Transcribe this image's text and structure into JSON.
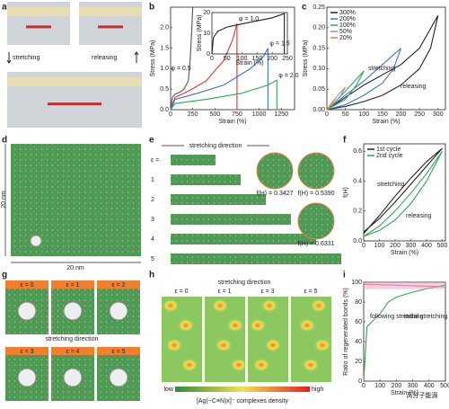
{
  "panel_labels": [
    "a",
    "b",
    "c",
    "d",
    "e",
    "f",
    "g",
    "h",
    "i"
  ],
  "panel_a": {
    "stretching": "stretching",
    "releasing": "releasing"
  },
  "chart_data": [
    {
      "type": "line",
      "xlabel": "Strain (%)",
      "ylabel": "Stress (MPa)",
      "xlim": [
        0,
        1400
      ],
      "ylim": [
        0,
        2.5
      ],
      "xticks": [
        0,
        250,
        500,
        750,
        1000,
        1250
      ],
      "yticks": [
        {
          "value": 0,
          "label": "0.0"
        },
        0.5,
        {
          "value": 1,
          "label": "1.0"
        },
        1.5,
        {
          "value": 2,
          "label": "2.0"
        }
      ],
      "series": [
        {
          "name": "φ = 0.5",
          "color": "#555555",
          "x": [
            0,
            20,
            50,
            100,
            150,
            200,
            220,
            240,
            250
          ],
          "values": [
            0,
            0.3,
            0.38,
            0.42,
            0.5,
            0.7,
            1.2,
            2.0,
            2.5
          ]
        },
        {
          "name": "φ = 1.0",
          "color": "#e8302b",
          "x": [
            0,
            50,
            200,
            400,
            600,
            700,
            750,
            750
          ],
          "values": [
            0,
            0.3,
            0.45,
            0.7,
            1.2,
            1.7,
            2.1,
            0
          ]
        },
        {
          "name": "φ = 1.5",
          "color": "#3a6fd0",
          "x": [
            0,
            50,
            300,
            600,
            900,
            1050,
            1100,
            1100
          ],
          "values": [
            0,
            0.25,
            0.4,
            0.6,
            1.0,
            1.3,
            1.5,
            0
          ]
        },
        {
          "name": "φ = 2.0",
          "color": "#2fa84f",
          "x": [
            0,
            50,
            400,
            800,
            1100,
            1200,
            1200
          ],
          "values": [
            0,
            0.15,
            0.25,
            0.4,
            0.6,
            0.72,
            0
          ]
        }
      ]
    },
    {
      "type": "line",
      "xlabel": "Strain (%)",
      "ylabel": "Stress (MPa)",
      "xlim": [
        0,
        250
      ],
      "ylim": [
        0,
        20
      ],
      "xticks": [
        0,
        50,
        100,
        150,
        200,
        250
      ],
      "yticks": [
        0,
        10,
        20
      ],
      "series": [
        {
          "color": "#222222",
          "x": [
            0,
            5,
            20,
            50,
            100,
            150,
            200,
            230,
            240,
            240
          ],
          "values": [
            0,
            8,
            11,
            13,
            14.5,
            16,
            17.5,
            19,
            19.5,
            0
          ]
        }
      ]
    },
    {
      "type": "line",
      "xlabel": "Strain (%)",
      "ylabel": "Stress (MPa)",
      "xlim": [
        0,
        320
      ],
      "ylim": [
        0,
        0.25
      ],
      "legend": "upper left",
      "xticks": [
        0,
        50,
        100,
        150,
        200,
        250,
        300
      ],
      "yticks": [
        {
          "value": 0,
          "label": "0.00"
        },
        0.05,
        {
          "value": 0.1,
          "label": "0.10"
        },
        0.15,
        {
          "value": 0.2,
          "label": "0.20"
        },
        0.25
      ],
      "annotations": [
        "stretching",
        "releasing"
      ],
      "series": [
        {
          "name": "300%",
          "color": "#222222",
          "x": [
            0,
            50,
            100,
            150,
            200,
            250,
            300,
            280,
            250,
            200,
            150,
            100,
            50,
            0
          ],
          "values": [
            0,
            0.03,
            0.06,
            0.085,
            0.11,
            0.15,
            0.23,
            0.15,
            0.1,
            0.06,
            0.035,
            0.02,
            0.008,
            0
          ]
        },
        {
          "name": "200%",
          "color": "#3a6fd0",
          "x": [
            0,
            50,
            100,
            150,
            200,
            180,
            150,
            100,
            50,
            0
          ],
          "values": [
            0,
            0.035,
            0.07,
            0.11,
            0.15,
            0.1,
            0.065,
            0.035,
            0.012,
            0
          ]
        },
        {
          "name": "100%",
          "color": "#2fa84f",
          "x": [
            0,
            50,
            100,
            80,
            50,
            0
          ],
          "values": [
            0,
            0.045,
            0.095,
            0.06,
            0.025,
            0
          ]
        },
        {
          "name": "50%",
          "color": "#999999",
          "x": [
            0,
            25,
            50,
            35,
            0
          ],
          "values": [
            0,
            0.03,
            0.055,
            0.03,
            0
          ]
        },
        {
          "name": "20%",
          "color": "#f08030",
          "x": [
            0,
            20,
            10,
            0
          ],
          "values": [
            0,
            0.025,
            0.01,
            0
          ]
        }
      ]
    },
    {
      "type": "line",
      "xlabel": "Strain (%)",
      "ylabel": "f(H)",
      "xlim": [
        0,
        520
      ],
      "ylim": [
        0,
        0.65
      ],
      "legend": "upper left",
      "xticks": [
        0,
        100,
        200,
        300,
        400,
        500
      ],
      "yticks": [
        {
          "value": 0,
          "label": "0.0"
        },
        0.2,
        0.4,
        0.6
      ],
      "annotations": [
        "stretching",
        "releasing"
      ],
      "series": [
        {
          "name": "1st cycle",
          "color": "#222222",
          "x": [
            0,
            100,
            200,
            300,
            400,
            500,
            400,
            300,
            200,
            100,
            0
          ],
          "values": [
            0.05,
            0.17,
            0.3,
            0.42,
            0.53,
            0.62,
            0.5,
            0.38,
            0.26,
            0.15,
            0.06
          ]
        },
        {
          "name": "2nd cycle",
          "color": "#2fa84f",
          "x": [
            0,
            100,
            200,
            300,
            400,
            500,
            400,
            300,
            200,
            100,
            0
          ],
          "values": [
            0.03,
            0.1,
            0.2,
            0.32,
            0.45,
            0.6,
            0.4,
            0.25,
            0.14,
            0.07,
            0.03
          ]
        }
      ]
    },
    {
      "type": "line",
      "xlabel": "Strain (%)",
      "ylabel": "Ratio of regenerated bonds (%)",
      "xlim": [
        0,
        500
      ],
      "ylim": [
        0,
        100
      ],
      "xticks": [
        0,
        100,
        200,
        300,
        400,
        500
      ],
      "yticks": [
        0,
        20,
        40,
        60,
        80,
        100
      ],
      "series": [
        {
          "name": "following stretching",
          "color": "#f06030",
          "x": [
            0,
            100,
            200,
            300,
            400,
            500
          ],
          "values": [
            98,
            97.5,
            97,
            96.5,
            96,
            95.5
          ]
        },
        {
          "name": "initial stretching",
          "color": "#2fa84f",
          "x": [
            0,
            20,
            50,
            100,
            150,
            200,
            300,
            400,
            500
          ],
          "values": [
            0,
            55,
            60,
            68,
            80,
            85,
            90,
            94,
            97
          ]
        }
      ]
    }
  ],
  "panel_d": {
    "x_size": "20 nm",
    "y_size": "20 nm"
  },
  "panel_e": {
    "direction": "stretching direction",
    "strain_labels": [
      "ε =",
      "1",
      "2",
      "3",
      "4",
      "5"
    ],
    "fh_labels": [
      "f(H) = 0.3427",
      "f(H) = 0.5390",
      "f(H) = 0.6331"
    ]
  },
  "panel_g": {
    "labels": [
      "ε = 0",
      "ε = 1",
      "ε = 2",
      "ε = 3",
      "ε = 4",
      "ε = 5"
    ],
    "direction": "stretching direction"
  },
  "panel_h": {
    "direction": "stretching direction",
    "labels": [
      "ε = 0",
      "ε = 1",
      "ε = 3",
      "ε = 5"
    ],
    "low": "low",
    "high": "high",
    "colorbar": "[Ag(−C≡N)x]⁻ complexes density"
  },
  "watermark": "高分子能源"
}
